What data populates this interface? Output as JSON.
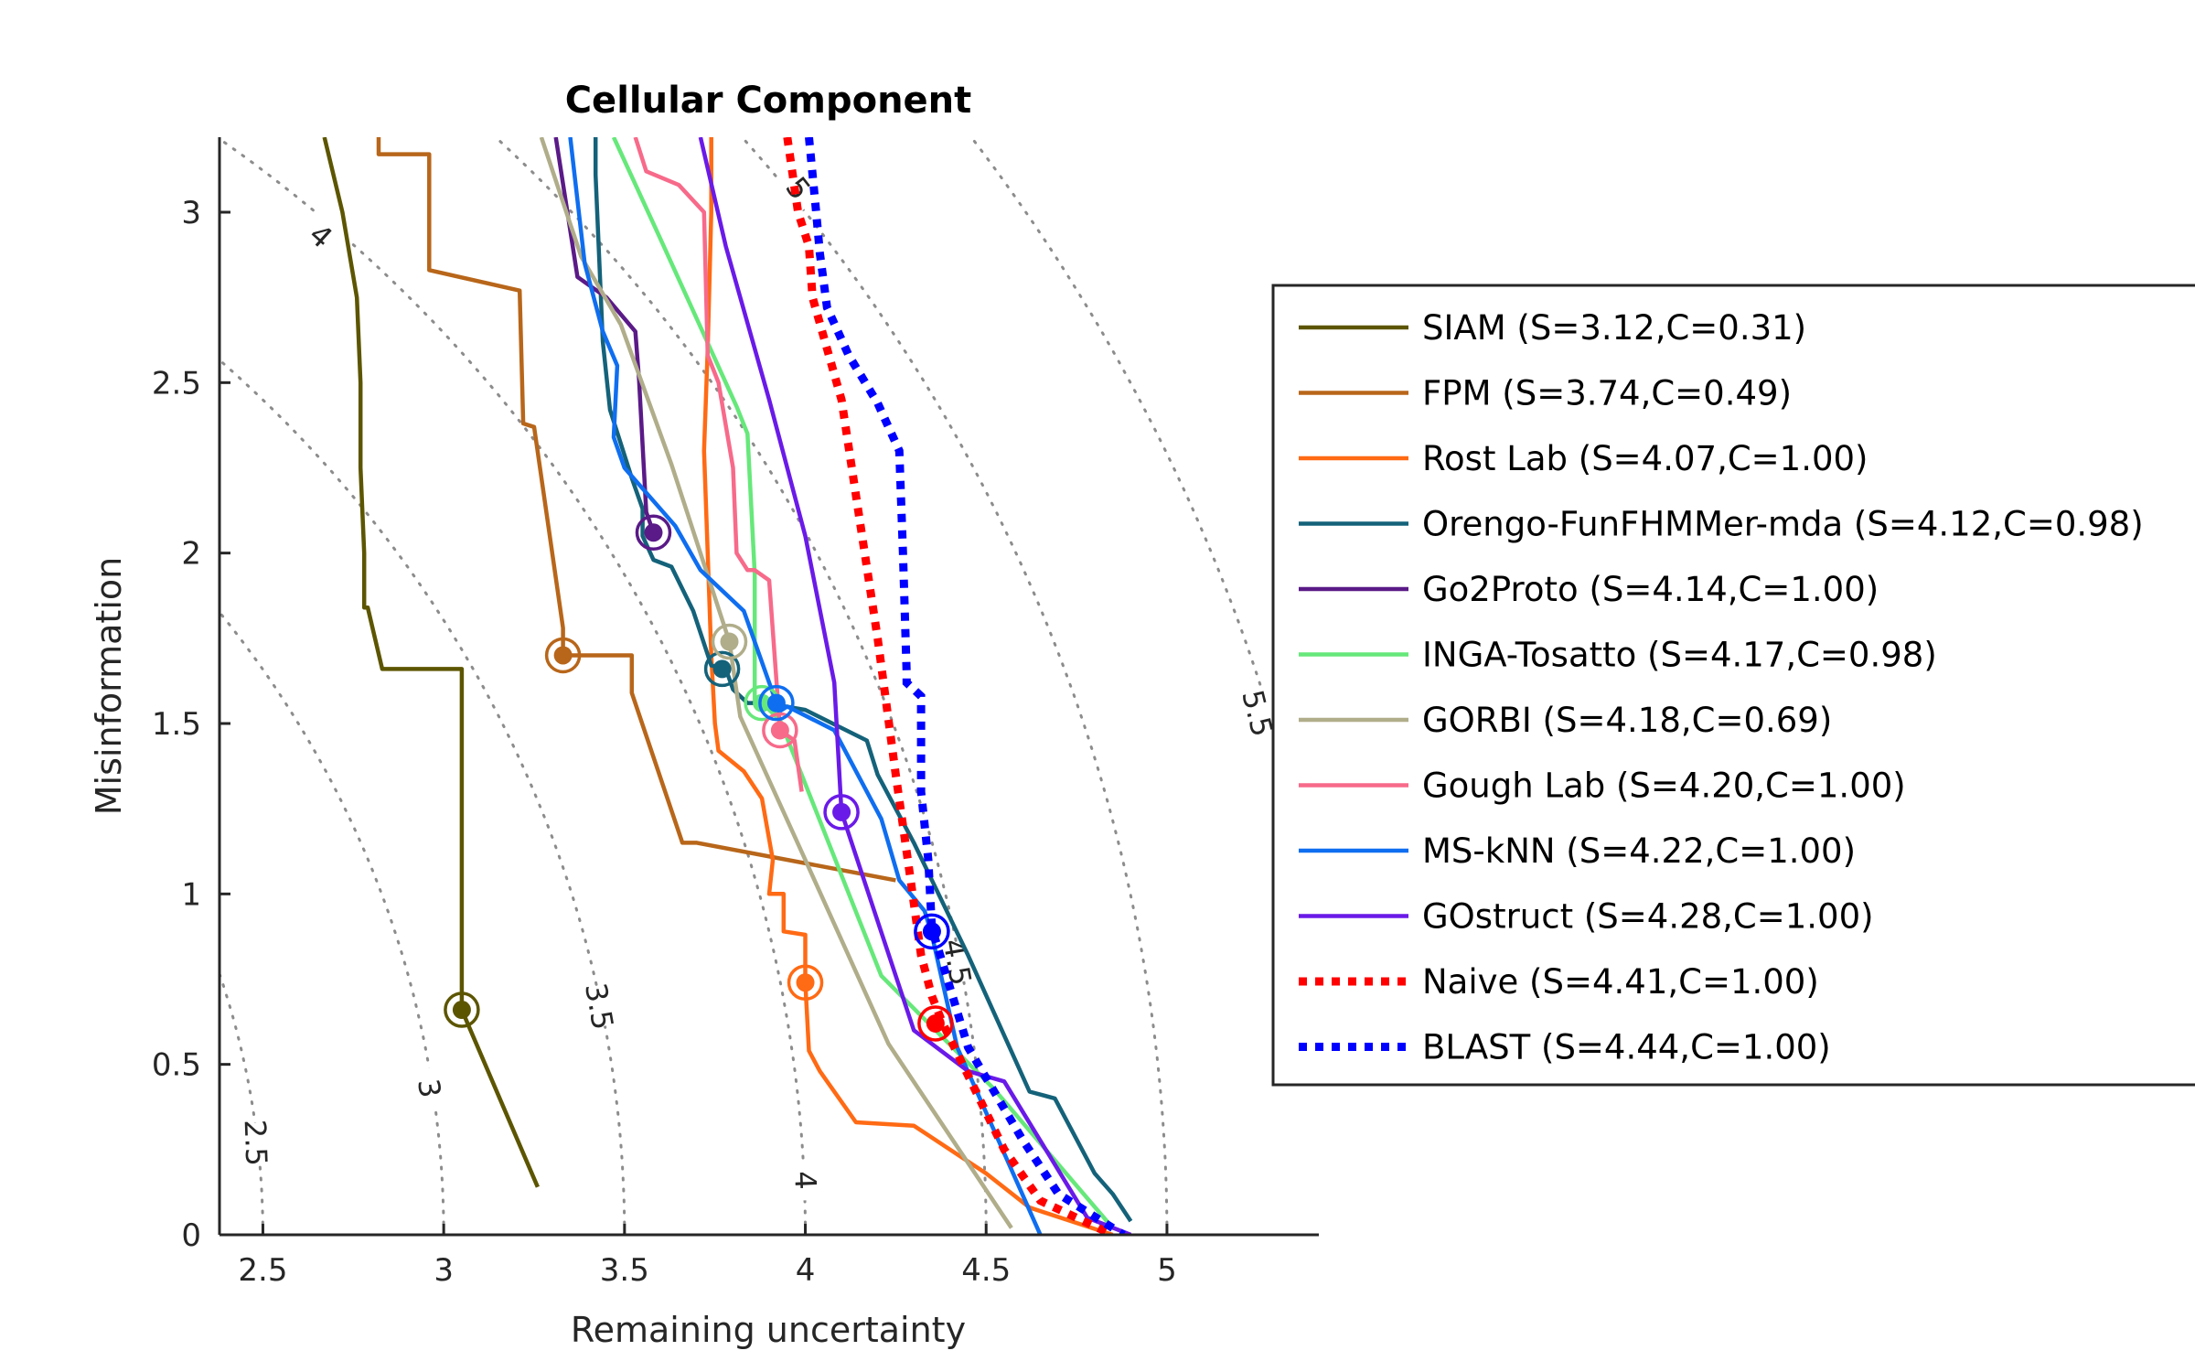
{
  "chart_data": {
    "type": "line",
    "title": "Cellular Component",
    "xlabel": "Remaining uncertainty",
    "ylabel": "Misinformation",
    "xlim": [
      2.38,
      5.42
    ],
    "ylim": [
      0,
      3.22
    ],
    "xticks": [
      "2.5",
      "3",
      "3.5",
      "4",
      "4.5",
      "5"
    ],
    "yticks": [
      "0",
      "0.5",
      "1",
      "1.5",
      "2",
      "2.5",
      "3"
    ],
    "grid": false,
    "contours": {
      "style": "dotted grey circles centered at origin",
      "levels": [
        "2.5",
        "3",
        "3.5",
        "4",
        "4.5",
        "5",
        "5.5"
      ],
      "labels": [
        {
          "text": "2.5",
          "x": 2.48,
          "y": 0.27,
          "rot": 88
        },
        {
          "text": "3",
          "x": 2.96,
          "y": 0.43,
          "rot": 82
        },
        {
          "text": "3.5",
          "x": 3.43,
          "y": 0.67,
          "rot": 80
        },
        {
          "text": "4",
          "x": 4.0,
          "y": 0.16,
          "rot": 88
        },
        {
          "text": "4.5",
          "x": 4.42,
          "y": 0.8,
          "rot": 80
        },
        {
          "text": "5",
          "x": 3.98,
          "y": 3.07,
          "rot": 52
        },
        {
          "text": "4",
          "x": 2.66,
          "y": 2.93,
          "rot": 42
        },
        {
          "text": "5.5",
          "x": 5.25,
          "y": 1.53,
          "rot": 76
        }
      ]
    },
    "legend_position": "right, outside axes (partially clipped)",
    "series": [
      {
        "name": "SIAM (S=3.12,C=0.31)",
        "color": "#5c5500",
        "style": "solid",
        "x": [
          2.67,
          2.72,
          2.76,
          2.77,
          2.77,
          2.78,
          2.78,
          2.79,
          2.83,
          2.84,
          3.05,
          3.05,
          3.26
        ],
        "y": [
          3.22,
          3.0,
          2.75,
          2.5,
          2.25,
          2.0,
          1.84,
          1.84,
          1.66,
          1.66,
          1.66,
          0.66,
          0.14
        ],
        "point": {
          "x": 3.05,
          "y": 0.66
        }
      },
      {
        "name": "FPM (S=3.74,C=0.49)",
        "color": "#b8661a",
        "style": "solid",
        "x": [
          2.82,
          2.82,
          2.96,
          2.96,
          3.21,
          3.22,
          3.25,
          3.33,
          3.33,
          3.52,
          3.52,
          3.66,
          3.7,
          4.25
        ],
        "y": [
          3.22,
          3.17,
          3.17,
          2.83,
          2.77,
          2.38,
          2.37,
          1.78,
          1.7,
          1.7,
          1.59,
          1.15,
          1.15,
          1.04
        ],
        "point": {
          "x": 3.33,
          "y": 1.7
        }
      },
      {
        "name": "Rost Lab (S=4.07,C=1.00)",
        "color": "#ff6a14",
        "style": "solid",
        "x": [
          3.74,
          3.74,
          3.73,
          3.72,
          3.73,
          3.74,
          3.75,
          3.76,
          3.83,
          3.88,
          3.91,
          3.9,
          3.94,
          3.94,
          4.0,
          4.0,
          4.01,
          4.04,
          4.14,
          4.3,
          4.5,
          4.62,
          4.85
        ],
        "y": [
          3.22,
          3.0,
          2.6,
          2.3,
          2.0,
          1.7,
          1.5,
          1.42,
          1.36,
          1.28,
          1.1,
          1.0,
          1.0,
          0.89,
          0.88,
          0.74,
          0.54,
          0.48,
          0.33,
          0.32,
          0.18,
          0.08,
          0.0
        ],
        "point": {
          "x": 4.0,
          "y": 0.74
        }
      },
      {
        "name": "Orengo-FunFHMMer-mda (S=4.12,C=0.98)",
        "color": "#14627a",
        "style": "solid",
        "x": [
          3.42,
          3.42,
          3.44,
          3.46,
          3.52,
          3.55,
          3.55,
          3.58,
          3.63,
          3.69,
          3.74,
          3.78,
          3.8,
          3.84,
          3.89,
          4.0,
          4.17,
          4.2,
          4.3,
          4.45,
          4.62,
          4.69,
          4.8,
          4.85,
          4.9
        ],
        "y": [
          3.22,
          3.11,
          2.62,
          2.42,
          2.22,
          2.13,
          2.05,
          1.98,
          1.96,
          1.83,
          1.67,
          1.66,
          1.6,
          1.56,
          1.56,
          1.54,
          1.45,
          1.35,
          1.15,
          0.82,
          0.42,
          0.4,
          0.18,
          0.12,
          0.04
        ],
        "point": {
          "x": 3.77,
          "y": 1.66
        }
      },
      {
        "name": "Go2Proto (S=4.14,C=1.00)",
        "color": "#5a1a87",
        "style": "solid",
        "x": [
          3.31,
          3.37,
          3.45,
          3.53,
          3.54,
          3.56,
          3.58
        ],
        "y": [
          3.22,
          2.81,
          2.75,
          2.65,
          2.51,
          2.12,
          2.06
        ],
        "point": {
          "x": 3.58,
          "y": 2.06
        }
      },
      {
        "name": "INGA-Tosatto (S=4.17,C=0.98)",
        "color": "#66e87a",
        "style": "solid",
        "x": [
          3.47,
          3.6,
          3.81,
          3.84,
          3.86,
          3.86,
          3.88,
          3.93,
          4.21,
          4.52,
          4.85
        ],
        "y": [
          3.22,
          2.92,
          2.43,
          2.35,
          1.94,
          1.57,
          1.56,
          1.51,
          0.76,
          0.43,
          0.02
        ],
        "point": {
          "x": 3.88,
          "y": 1.56
        }
      },
      {
        "name": "GORBI (S=4.18,C=0.69)",
        "color": "#b0ad8a",
        "style": "solid",
        "x": [
          3.27,
          3.38,
          3.49,
          3.63,
          3.79,
          3.82,
          4.0,
          4.23,
          4.57
        ],
        "y": [
          3.22,
          2.87,
          2.67,
          2.26,
          1.74,
          1.52,
          1.1,
          0.56,
          0.02
        ],
        "point": {
          "x": 3.79,
          "y": 1.74
        }
      },
      {
        "name": "Gough Lab (S=4.20,C=1.00)",
        "color": "#f76a8a",
        "style": "solid",
        "x": [
          3.53,
          3.56,
          3.65,
          3.72,
          3.73,
          3.76,
          3.8,
          3.81,
          3.84,
          3.86,
          3.9,
          3.93,
          3.97,
          3.99
        ],
        "y": [
          3.22,
          3.12,
          3.08,
          3.0,
          2.58,
          2.5,
          2.25,
          2.0,
          1.95,
          1.95,
          1.92,
          1.48,
          1.45,
          1.3
        ],
        "point": {
          "x": 3.93,
          "y": 1.48
        }
      },
      {
        "name": "MS-kNN (S=4.22,C=1.00)",
        "color": "#0f6ef0",
        "style": "solid",
        "x": [
          3.35,
          3.39,
          3.44,
          3.48,
          3.47,
          3.5,
          3.64,
          3.71,
          3.83,
          3.92,
          3.92,
          3.95,
          4.08,
          4.21,
          4.26,
          4.33,
          4.35,
          4.42,
          4.65
        ],
        "y": [
          3.22,
          2.85,
          2.65,
          2.55,
          2.34,
          2.25,
          2.08,
          1.95,
          1.83,
          1.56,
          1.53,
          1.55,
          1.48,
          1.22,
          1.04,
          0.95,
          0.88,
          0.55,
          0.0
        ],
        "point": {
          "x": 3.92,
          "y": 1.56
        }
      },
      {
        "name": "GOstruct (S=4.28,C=1.00)",
        "color": "#6a1ae8",
        "style": "solid",
        "x": [
          3.71,
          3.78,
          3.9,
          4.0,
          4.08,
          4.1,
          4.2,
          4.3,
          4.45,
          4.55,
          4.78,
          4.9
        ],
        "y": [
          3.22,
          2.9,
          2.45,
          2.05,
          1.62,
          1.24,
          0.92,
          0.6,
          0.48,
          0.45,
          0.05,
          0.0
        ],
        "point": {
          "x": 4.1,
          "y": 1.24
        }
      },
      {
        "name": "Naive (S=4.41,C=1.00)",
        "color": "#ff0000",
        "style": "dotted",
        "x": [
          3.95,
          3.98,
          4.01,
          4.02,
          4.1,
          4.15,
          4.2,
          4.25,
          4.29,
          4.32,
          4.35,
          4.38,
          4.55,
          4.65,
          4.85
        ],
        "y": [
          3.22,
          3.0,
          2.9,
          2.75,
          2.45,
          2.1,
          1.75,
          1.35,
          1.05,
          0.82,
          0.7,
          0.62,
          0.25,
          0.1,
          0.0
        ],
        "point": {
          "x": 4.36,
          "y": 0.62
        }
      },
      {
        "name": "BLAST (S=4.44,C=1.00)",
        "color": "#0000ff",
        "style": "dotted",
        "x": [
          4.01,
          4.03,
          4.04,
          4.06,
          4.12,
          4.2,
          4.26,
          4.27,
          4.28,
          4.28,
          4.32,
          4.32,
          4.34,
          4.35,
          4.45,
          4.6,
          4.7,
          4.88
        ],
        "y": [
          3.22,
          3.0,
          2.88,
          2.72,
          2.58,
          2.44,
          2.3,
          2.0,
          1.65,
          1.62,
          1.58,
          1.3,
          1.1,
          0.9,
          0.55,
          0.28,
          0.12,
          0.0
        ],
        "point": {
          "x": 4.35,
          "y": 0.89
        }
      }
    ]
  }
}
